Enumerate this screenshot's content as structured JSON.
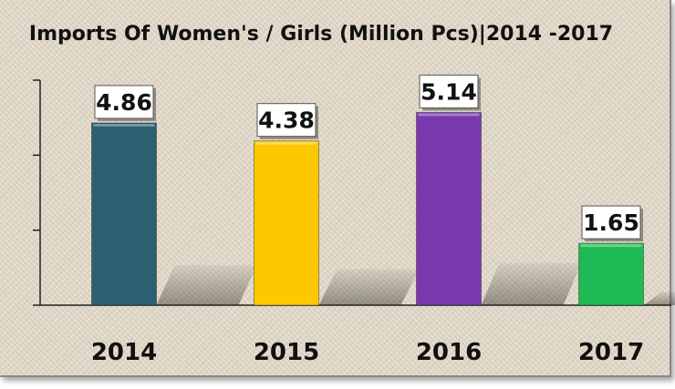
{
  "chart_data": {
    "type": "bar",
    "title": "Imports Of Women's / Girls (Million Pcs)|2014 -2017",
    "categories": [
      "2014",
      "2015",
      "2016",
      "2017"
    ],
    "values": [
      4.86,
      4.38,
      5.14,
      1.65
    ],
    "value_labels": [
      "4.86",
      "4.38",
      "5.14",
      "1.65"
    ],
    "colors": [
      "#2b6070",
      "#fcc800",
      "#7a38ae",
      "#1fba55"
    ],
    "xlabel": "",
    "ylabel": "",
    "ylim": [
      0,
      6
    ],
    "y_ticks": [
      0,
      2,
      4,
      6
    ],
    "grid": false,
    "legend": "none"
  }
}
